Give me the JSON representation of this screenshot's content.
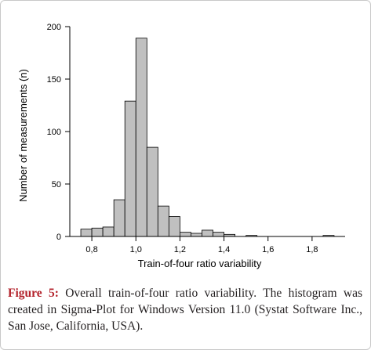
{
  "chart_data": {
    "type": "bar",
    "title": "",
    "xlabel": "Train-of-four ratio variability",
    "ylabel": "Number of measurements (n)",
    "xlim": [
      0.7,
      1.95
    ],
    "ylim": [
      0,
      200
    ],
    "xticks": [
      0.8,
      1.0,
      1.2,
      1.4,
      1.6,
      1.8
    ],
    "xtick_labels": [
      "0,8",
      "1,0",
      "1,2",
      "1,4",
      "1,6",
      "1,8"
    ],
    "yticks": [
      0,
      50,
      100,
      150,
      200
    ],
    "ytick_labels": [
      "0",
      "50",
      "100",
      "150",
      "200"
    ],
    "bin_width": 0.05,
    "bins": [
      {
        "x": 0.775,
        "value": 7
      },
      {
        "x": 0.825,
        "value": 8
      },
      {
        "x": 0.875,
        "value": 9
      },
      {
        "x": 0.925,
        "value": 35
      },
      {
        "x": 0.975,
        "value": 129
      },
      {
        "x": 1.025,
        "value": 189
      },
      {
        "x": 1.075,
        "value": 85
      },
      {
        "x": 1.125,
        "value": 29
      },
      {
        "x": 1.175,
        "value": 19
      },
      {
        "x": 1.225,
        "value": 4
      },
      {
        "x": 1.275,
        "value": 3
      },
      {
        "x": 1.325,
        "value": 6
      },
      {
        "x": 1.375,
        "value": 4
      },
      {
        "x": 1.425,
        "value": 2
      },
      {
        "x": 1.475,
        "value": 0
      },
      {
        "x": 1.525,
        "value": 1
      },
      {
        "x": 1.575,
        "value": 0
      },
      {
        "x": 1.625,
        "value": 0
      },
      {
        "x": 1.675,
        "value": 0
      },
      {
        "x": 1.725,
        "value": 0
      },
      {
        "x": 1.775,
        "value": 0
      },
      {
        "x": 1.825,
        "value": 0
      },
      {
        "x": 1.875,
        "value": 1
      }
    ],
    "bar_color": "#c0c0c0",
    "grid": false
  },
  "caption": {
    "label": "Figure 5:",
    "text": " Overall train-of-four ratio variability. The histogram was created in Sigma-Plot for Windows Version 11.0 (Systat Software Inc., San Jose, California, USA)."
  }
}
